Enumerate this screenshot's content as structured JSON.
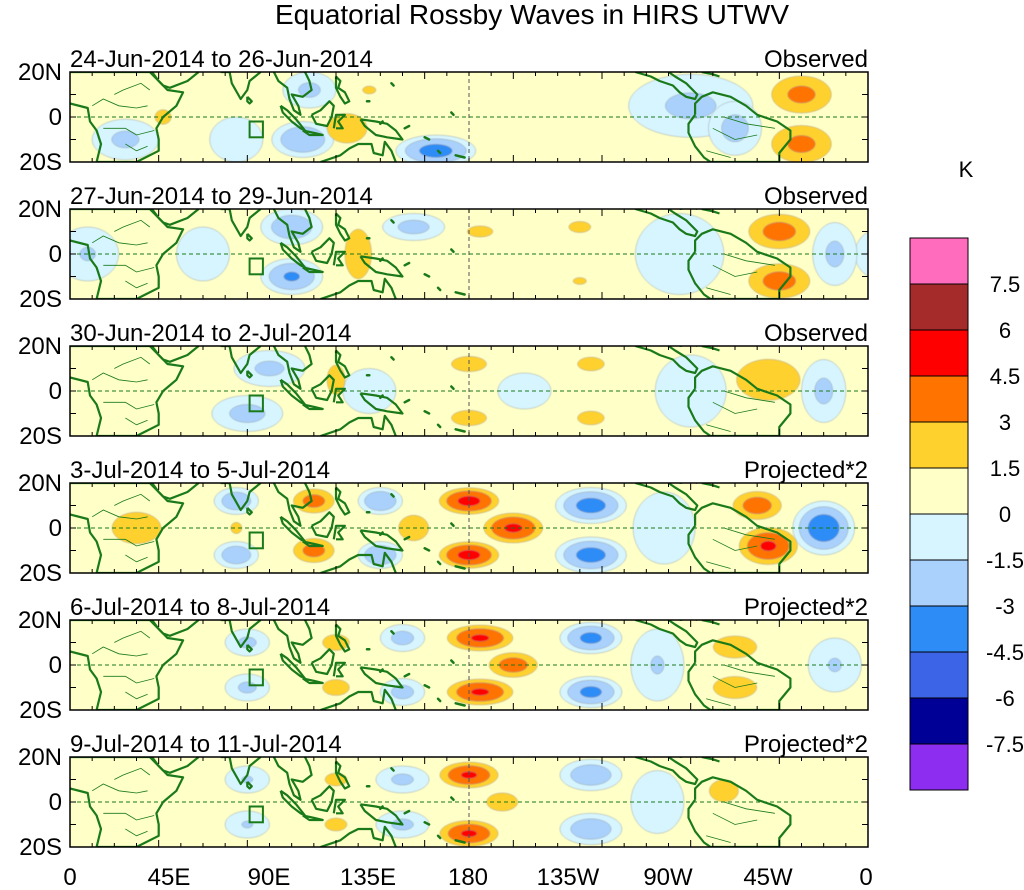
{
  "chart_data": {
    "type": "heatmap",
    "title": "Equatorial Rossby Waves in HIRS UTWV",
    "units": "K",
    "x_ticks": [
      "0",
      "45E",
      "90E",
      "135E",
      "180",
      "135W",
      "90W",
      "45W",
      "0"
    ],
    "y_ticks": [
      "20N",
      "0",
      "20S"
    ],
    "colorbar": {
      "levels": [
        "7.5",
        "6",
        "4.5",
        "3",
        "1.5",
        "0",
        "-1.5",
        "-3",
        "-4.5",
        "-6",
        "-7.5"
      ],
      "colors": [
        "#ff6cbd",
        "#a52a2a",
        "#ff0000",
        "#ff7300",
        "#ffd12d",
        "#ffffc8",
        "#d6f5ff",
        "#a9d1fc",
        "#2d8cf6",
        "#3c64e6",
        "#000096",
        "#8c2df0"
      ]
    },
    "panels": [
      {
        "date_range": "24-Jun-2014 to 26-Jun-2014",
        "kind": "Observed"
      },
      {
        "date_range": "27-Jun-2014 to 29-Jun-2014",
        "kind": "Observed"
      },
      {
        "date_range": "30-Jun-2014 to 2-Jul-2014",
        "kind": "Observed"
      },
      {
        "date_range": "3-Jul-2014 to 5-Jul-2014",
        "kind": "Projected*2"
      },
      {
        "date_range": "6-Jul-2014 to 8-Jul-2014",
        "kind": "Projected*2"
      },
      {
        "date_range": "9-Jul-2014 to 11-Jul-2014",
        "kind": "Projected*2"
      }
    ],
    "anomalies": [
      [
        {
          "lon": 255,
          "lat": 0,
          "v": 0.8,
          "rx": 130,
          "ry": 30
        },
        {
          "lon": 240,
          "lat": 5,
          "v": 1.2,
          "rx": 35,
          "ry": 9
        },
        {
          "lon": 330,
          "lat": 10,
          "v": 3.4,
          "rx": 18,
          "ry": 11
        },
        {
          "lon": 330,
          "lat": -12,
          "v": 3.4,
          "rx": 18,
          "ry": 11
        },
        {
          "lon": 125,
          "lat": -5,
          "v": 1.8,
          "rx": 22,
          "ry": 16
        },
        {
          "lon": 135,
          "lat": 12,
          "v": 1.6,
          "rx": 12,
          "ry": 7
        },
        {
          "lon": 42,
          "lat": 0,
          "v": 1.8,
          "rx": 9,
          "ry": 8
        },
        {
          "lon": 5,
          "lat": 0,
          "v": 0.8,
          "rx": 18,
          "ry": 25
        },
        {
          "lon": 25,
          "lat": -10,
          "v": -1.8,
          "rx": 15,
          "ry": 9
        },
        {
          "lon": 105,
          "lat": -10,
          "v": -3.0,
          "rx": 14,
          "ry": 8
        },
        {
          "lon": 108,
          "lat": 12,
          "v": -1.8,
          "rx": 12,
          "ry": 8
        },
        {
          "lon": 165,
          "lat": -15,
          "v": -3.6,
          "rx": 18,
          "ry": 7
        },
        {
          "lon": 280,
          "lat": 5,
          "v": -1.8,
          "rx": 28,
          "ry": 14
        },
        {
          "lon": 300,
          "lat": -5,
          "v": -2.0,
          "rx": 12,
          "ry": 12
        },
        {
          "lon": 75,
          "lat": -10,
          "v": -1.2,
          "rx": 12,
          "ry": 10
        }
      ],
      [
        {
          "lon": 250,
          "lat": 0,
          "v": 0.9,
          "rx": 120,
          "ry": 30
        },
        {
          "lon": 320,
          "lat": 10,
          "v": 3.6,
          "rx": 18,
          "ry": 10
        },
        {
          "lon": 320,
          "lat": -12,
          "v": 3.6,
          "rx": 18,
          "ry": 10
        },
        {
          "lon": 130,
          "lat": 0,
          "v": 2.0,
          "rx": 12,
          "ry": 22
        },
        {
          "lon": 185,
          "lat": 10,
          "v": 1.8,
          "rx": 14,
          "ry": 6
        },
        {
          "lon": 230,
          "lat": 12,
          "v": 1.8,
          "rx": 12,
          "ry": 6
        },
        {
          "lon": 185,
          "lat": -12,
          "v": 1.5,
          "rx": 14,
          "ry": 6
        },
        {
          "lon": 230,
          "lat": -12,
          "v": 1.6,
          "rx": 12,
          "ry": 6
        },
        {
          "lon": 30,
          "lat": 0,
          "v": 0.8,
          "rx": 25,
          "ry": 18
        },
        {
          "lon": 100,
          "lat": -10,
          "v": -3.2,
          "rx": 14,
          "ry": 8
        },
        {
          "lon": 100,
          "lat": 12,
          "v": -2.6,
          "rx": 14,
          "ry": 8
        },
        {
          "lon": 155,
          "lat": 12,
          "v": -2.0,
          "rx": 14,
          "ry": 6
        },
        {
          "lon": 8,
          "lat": 0,
          "v": -1.6,
          "rx": 14,
          "ry": 12
        },
        {
          "lon": 60,
          "lat": 0,
          "v": -1.4,
          "rx": 12,
          "ry": 12
        },
        {
          "lon": 275,
          "lat": 0,
          "v": -1.5,
          "rx": 20,
          "ry": 18
        },
        {
          "lon": 345,
          "lat": 0,
          "v": -1.8,
          "rx": 10,
          "ry": 14
        }
      ],
      [
        {
          "lon": 240,
          "lat": 0,
          "v": 0.8,
          "rx": 120,
          "ry": 30
        },
        {
          "lon": 315,
          "lat": 5,
          "v": 2.6,
          "rx": 22,
          "ry": 14
        },
        {
          "lon": 120,
          "lat": 5,
          "v": 1.8,
          "rx": 10,
          "ry": 16
        },
        {
          "lon": 180,
          "lat": 12,
          "v": 2.2,
          "rx": 14,
          "ry": 6
        },
        {
          "lon": 180,
          "lat": -12,
          "v": 2.2,
          "rx": 14,
          "ry": 6
        },
        {
          "lon": 235,
          "lat": 12,
          "v": 2.0,
          "rx": 12,
          "ry": 6
        },
        {
          "lon": 235,
          "lat": -12,
          "v": 2.0,
          "rx": 12,
          "ry": 6
        },
        {
          "lon": 90,
          "lat": 10,
          "v": -1.8,
          "rx": 16,
          "ry": 8
        },
        {
          "lon": 80,
          "lat": -10,
          "v": -2.0,
          "rx": 16,
          "ry": 8
        },
        {
          "lon": 135,
          "lat": 0,
          "v": -1.2,
          "rx": 12,
          "ry": 10
        },
        {
          "lon": 205,
          "lat": 0,
          "v": -1.4,
          "rx": 12,
          "ry": 8
        },
        {
          "lon": 340,
          "lat": 0,
          "v": -1.8,
          "rx": 10,
          "ry": 14
        },
        {
          "lon": 280,
          "lat": 0,
          "v": -1.2,
          "rx": 16,
          "ry": 16
        }
      ],
      [
        {
          "lon": 180,
          "lat": 12,
          "v": 5.0,
          "rx": 16,
          "ry": 7
        },
        {
          "lon": 180,
          "lat": -12,
          "v": 5.0,
          "rx": 16,
          "ry": 7
        },
        {
          "lon": 200,
          "lat": 0,
          "v": 4.8,
          "rx": 16,
          "ry": 8
        },
        {
          "lon": 110,
          "lat": 12,
          "v": 3.6,
          "rx": 12,
          "ry": 7
        },
        {
          "lon": 110,
          "lat": -10,
          "v": 3.6,
          "rx": 12,
          "ry": 7
        },
        {
          "lon": 310,
          "lat": 10,
          "v": 3.8,
          "rx": 14,
          "ry": 8
        },
        {
          "lon": 315,
          "lat": -8,
          "v": 4.6,
          "rx": 16,
          "ry": 10
        },
        {
          "lon": 30,
          "lat": 0,
          "v": 2.0,
          "rx": 22,
          "ry": 14
        },
        {
          "lon": 155,
          "lat": 0,
          "v": 2.2,
          "rx": 12,
          "ry": 10
        },
        {
          "lon": 75,
          "lat": 0,
          "v": 1.6,
          "rx": 10,
          "ry": 10
        },
        {
          "lon": 235,
          "lat": 10,
          "v": -3.6,
          "rx": 16,
          "ry": 8
        },
        {
          "lon": 235,
          "lat": -12,
          "v": -3.6,
          "rx": 16,
          "ry": 8
        },
        {
          "lon": 340,
          "lat": 0,
          "v": -4.0,
          "rx": 14,
          "ry": 12
        },
        {
          "lon": 140,
          "lat": 12,
          "v": -3.0,
          "rx": 10,
          "ry": 6
        },
        {
          "lon": 140,
          "lat": -12,
          "v": -3.0,
          "rx": 10,
          "ry": 6
        },
        {
          "lon": 75,
          "lat": 12,
          "v": -2.6,
          "rx": 10,
          "ry": 6
        },
        {
          "lon": 75,
          "lat": -12,
          "v": -2.6,
          "rx": 10,
          "ry": 6
        },
        {
          "lon": 268,
          "lat": 0,
          "v": -1.4,
          "rx": 14,
          "ry": 16
        }
      ],
      [
        {
          "lon": 185,
          "lat": 12,
          "v": 4.6,
          "rx": 18,
          "ry": 7
        },
        {
          "lon": 185,
          "lat": -12,
          "v": 4.6,
          "rx": 18,
          "ry": 7
        },
        {
          "lon": 200,
          "lat": 0,
          "v": 3.8,
          "rx": 14,
          "ry": 7
        },
        {
          "lon": 300,
          "lat": 8,
          "v": 2.4,
          "rx": 16,
          "ry": 8
        },
        {
          "lon": 300,
          "lat": -10,
          "v": 2.4,
          "rx": 16,
          "ry": 8
        },
        {
          "lon": 120,
          "lat": 10,
          "v": 2.0,
          "rx": 12,
          "ry": 7
        },
        {
          "lon": 120,
          "lat": -10,
          "v": 2.0,
          "rx": 12,
          "ry": 7
        },
        {
          "lon": 30,
          "lat": 0,
          "v": 1.5,
          "rx": 22,
          "ry": 14
        },
        {
          "lon": 235,
          "lat": 12,
          "v": -3.4,
          "rx": 14,
          "ry": 7
        },
        {
          "lon": 235,
          "lat": -12,
          "v": -3.4,
          "rx": 14,
          "ry": 7
        },
        {
          "lon": 150,
          "lat": 12,
          "v": -2.0,
          "rx": 10,
          "ry": 6
        },
        {
          "lon": 150,
          "lat": -12,
          "v": -2.0,
          "rx": 10,
          "ry": 6
        },
        {
          "lon": 80,
          "lat": 10,
          "v": -1.8,
          "rx": 10,
          "ry": 6
        },
        {
          "lon": 80,
          "lat": -10,
          "v": -1.8,
          "rx": 10,
          "ry": 6
        },
        {
          "lon": 265,
          "lat": 0,
          "v": -1.6,
          "rx": 12,
          "ry": 16
        },
        {
          "lon": 345,
          "lat": 0,
          "v": -1.6,
          "rx": 12,
          "ry": 12
        }
      ],
      [
        {
          "lon": 180,
          "lat": 12,
          "v": 4.6,
          "rx": 16,
          "ry": 7
        },
        {
          "lon": 180,
          "lat": -14,
          "v": 4.6,
          "rx": 16,
          "ry": 7
        },
        {
          "lon": 195,
          "lat": 0,
          "v": 2.0,
          "rx": 14,
          "ry": 8
        },
        {
          "lon": 295,
          "lat": 5,
          "v": 1.8,
          "rx": 16,
          "ry": 12
        },
        {
          "lon": 120,
          "lat": 10,
          "v": 1.8,
          "rx": 12,
          "ry": 7
        },
        {
          "lon": 120,
          "lat": -10,
          "v": 1.8,
          "rx": 12,
          "ry": 7
        },
        {
          "lon": 30,
          "lat": 0,
          "v": 1.2,
          "rx": 22,
          "ry": 14
        },
        {
          "lon": 235,
          "lat": 12,
          "v": -2.6,
          "rx": 14,
          "ry": 7
        },
        {
          "lon": 235,
          "lat": -12,
          "v": -2.6,
          "rx": 14,
          "ry": 7
        },
        {
          "lon": 150,
          "lat": 10,
          "v": -1.8,
          "rx": 12,
          "ry": 6
        },
        {
          "lon": 150,
          "lat": -10,
          "v": -1.8,
          "rx": 12,
          "ry": 6
        },
        {
          "lon": 80,
          "lat": 10,
          "v": -1.6,
          "rx": 10,
          "ry": 6
        },
        {
          "lon": 80,
          "lat": -10,
          "v": -1.6,
          "rx": 10,
          "ry": 6
        },
        {
          "lon": 265,
          "lat": 0,
          "v": -1.5,
          "rx": 12,
          "ry": 14
        }
      ]
    ]
  }
}
